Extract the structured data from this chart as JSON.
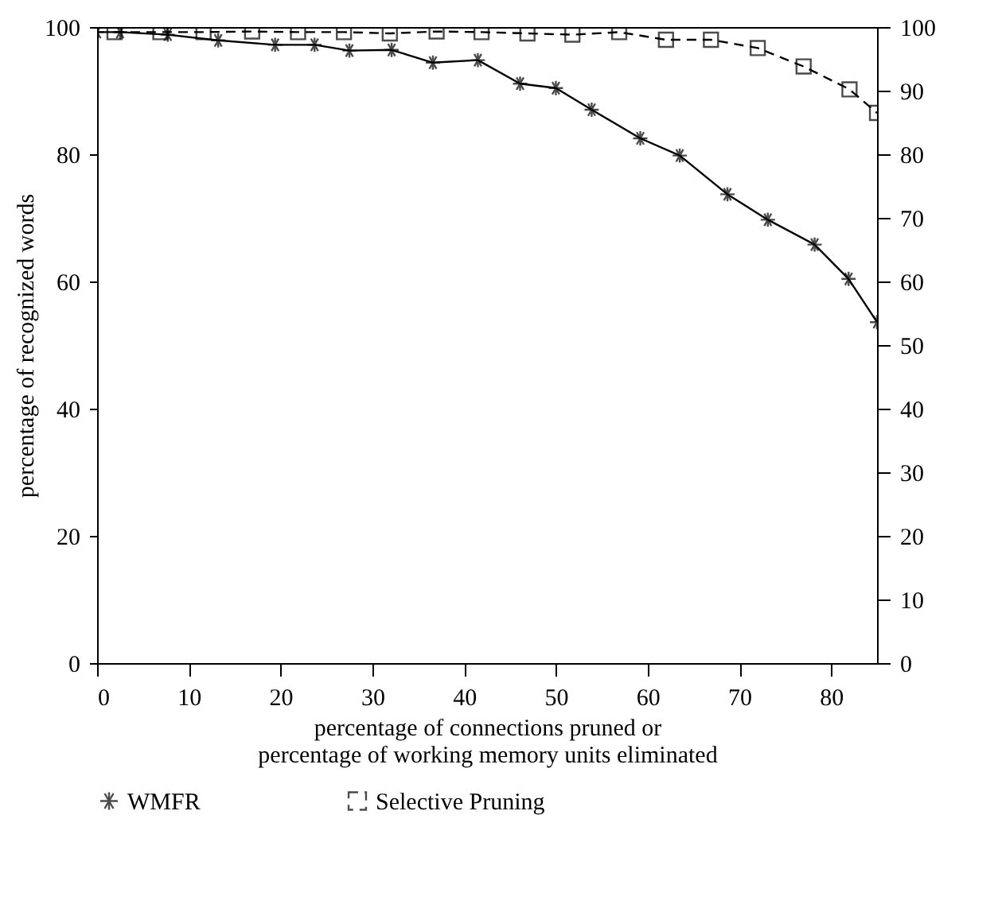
{
  "chart_data": {
    "type": "line",
    "xlabel": "percentage of connections pruned or\npercentage of working memory units eliminated",
    "ylabel": "percentage of recognized words",
    "x": [
      0,
      2.5,
      7.7,
      13.2,
      19.4,
      23.7,
      27.5,
      32.1,
      36.6,
      41.5,
      46.1,
      50.0,
      53.9,
      59.2,
      63.5,
      68.7,
      73.1,
      78.2,
      81.9,
      85
    ],
    "series": [
      {
        "name": "WMFR",
        "color": "#000000",
        "marker": "cross",
        "line_style": "solid",
        "values": [
          99.2,
          99.2,
          98.8,
          97.9,
          97.2,
          97.2,
          96.3,
          96.4,
          94.4,
          94.8,
          91.1,
          90.4,
          87.0,
          82.5,
          79.8,
          73.7,
          69.7,
          65.8,
          60.4,
          53.6
        ]
      },
      {
        "name": "Selective Pruning",
        "color": "#000000",
        "marker": "square",
        "line_style": "dashed",
        "x": [
          1.9,
          6.9,
          11.6,
          16.9,
          21.9,
          26.9,
          31.9,
          37.0,
          41.9,
          46.9,
          51.8,
          56.9,
          62.0,
          66.9,
          72.0,
          77.0,
          82.0,
          85
        ],
        "values": [
          99.2,
          99.2,
          99.2,
          99.3,
          99.2,
          99.2,
          99.0,
          99.3,
          99.2,
          99.0,
          98.8,
          99.2,
          98.0,
          98.0,
          96.7,
          93.8,
          90.2,
          86.5
        ]
      }
    ],
    "xlim": [
      0,
      85
    ],
    "xticks": [
      0,
      10,
      20,
      30,
      40,
      50,
      60,
      70,
      80
    ],
    "ylim": [
      0,
      100
    ],
    "yticks": [
      0,
      20,
      40,
      60,
      80,
      100
    ],
    "y2lim": [
      0,
      100
    ],
    "y2ticks": [
      0,
      10,
      20,
      30,
      40,
      50,
      60,
      70,
      80,
      90,
      100
    ],
    "legend": "bottom",
    "grid": false
  }
}
